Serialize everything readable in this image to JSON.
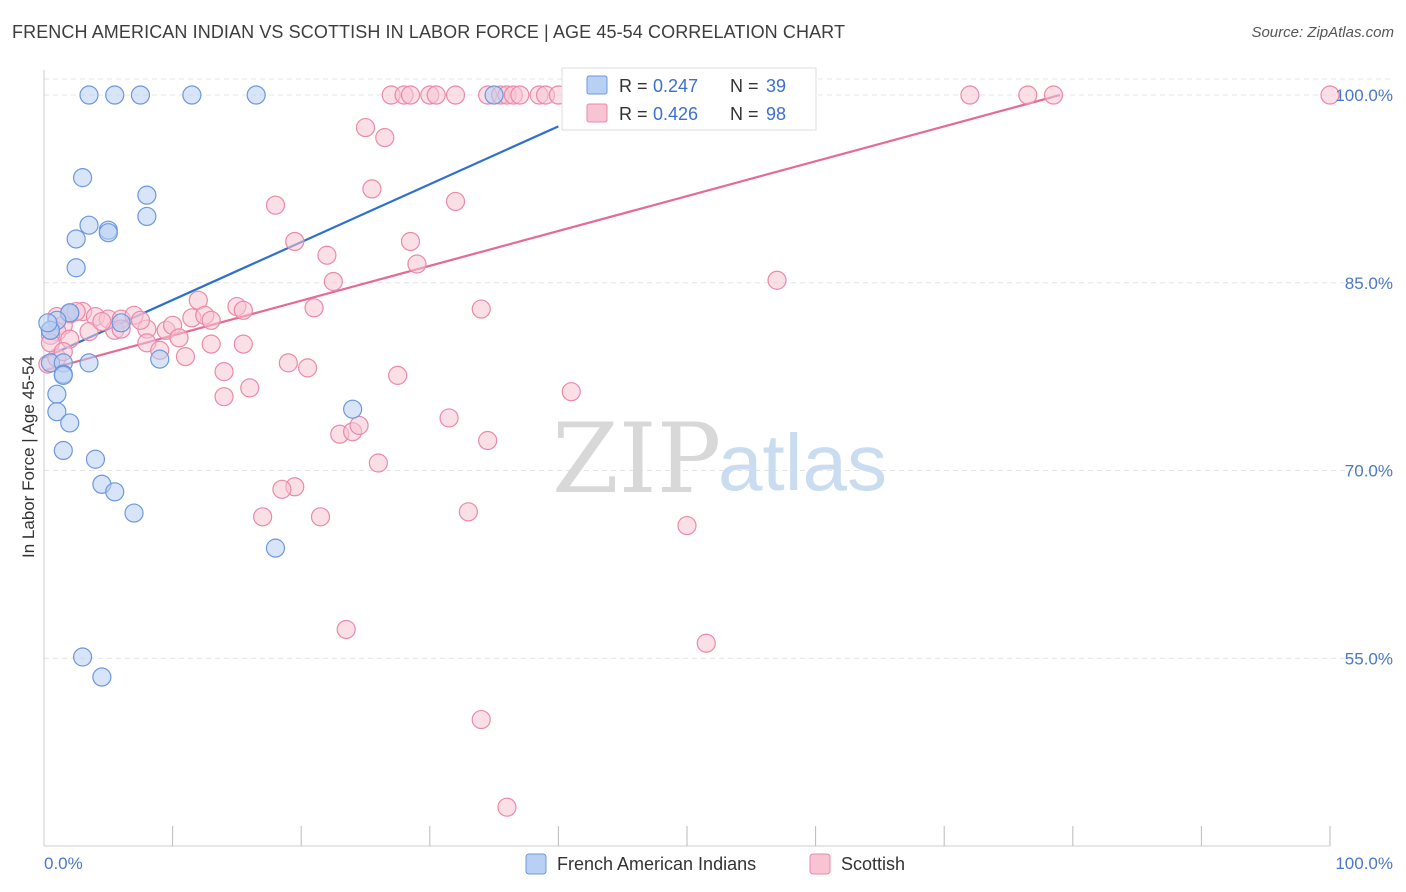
{
  "title": "FRENCH AMERICAN INDIAN VS SCOTTISH IN LABOR FORCE | AGE 45-54 CORRELATION CHART",
  "source": "Source: ZipAtlas.com",
  "watermark": {
    "zip": "ZIP",
    "atlas": "atlas"
  },
  "colors": {
    "blue_fill": "#b8d0f4",
    "blue_stroke": "#6b98de",
    "blue_line": "#2f6fce",
    "pink_fill": "#f8c4d3",
    "pink_stroke": "#ea8aa8",
    "pink_line": "#e56a94",
    "grid": "#e4e4e4",
    "axis_text": "#4a78c6"
  },
  "chart_data": {
    "type": "scatter",
    "xlabel": "",
    "ylabel": "In Labor Force | Age 45-54",
    "xlim": [
      0,
      100
    ],
    "ylim": [
      40,
      102
    ],
    "x_tick_labels": [
      "0.0%",
      "100.0%"
    ],
    "y_ticks": [
      {
        "value": 100,
        "label": "100.0%"
      },
      {
        "value": 85,
        "label": "85.0%"
      },
      {
        "value": 70,
        "label": "70.0%"
      },
      {
        "value": 55,
        "label": "55.0%"
      }
    ],
    "legend": {
      "position": "top-center",
      "entries": [
        {
          "r_label": "R = ",
          "r_value": "0.247",
          "n_label": "N = ",
          "n_value": "39"
        },
        {
          "r_label": "R = ",
          "r_value": "0.426",
          "n_label": "N = ",
          "n_value": "98"
        }
      ]
    },
    "bottom_legend": [
      "French American Indians",
      "Scottish"
    ],
    "series": [
      {
        "name": "French American Indians",
        "color": "blue",
        "trend": {
          "x0": 0,
          "y0": 79.0,
          "x1": 40,
          "y1": 97.5
        },
        "points": [
          [
            3.5,
            100
          ],
          [
            5.5,
            100
          ],
          [
            7.5,
            100
          ],
          [
            11.5,
            100
          ],
          [
            16.5,
            100
          ],
          [
            35,
            100
          ],
          [
            3,
            93.4
          ],
          [
            8,
            92
          ],
          [
            8,
            90.3
          ],
          [
            3.5,
            89.6
          ],
          [
            5,
            89.2
          ],
          [
            5,
            89
          ],
          [
            2.5,
            88.5
          ],
          [
            2.5,
            86.2
          ],
          [
            2,
            82.6
          ],
          [
            2,
            82.6
          ],
          [
            1,
            82
          ],
          [
            0.5,
            81.2
          ],
          [
            0.5,
            81.2
          ],
          [
            6,
            81.8
          ],
          [
            9,
            78.9
          ],
          [
            0.5,
            78.6
          ],
          [
            1.5,
            78.6
          ],
          [
            3.5,
            78.6
          ],
          [
            1.5,
            77.7
          ],
          [
            1.5,
            77.6
          ],
          [
            1,
            76.1
          ],
          [
            1,
            74.7
          ],
          [
            2,
            73.8
          ],
          [
            1.5,
            71.6
          ],
          [
            4,
            70.9
          ],
          [
            4.5,
            68.9
          ],
          [
            5.5,
            68.3
          ],
          [
            7,
            66.6
          ],
          [
            24,
            74.9
          ],
          [
            18,
            63.8
          ],
          [
            3,
            55.1
          ],
          [
            4.5,
            53.5
          ],
          [
            0.3,
            81.8
          ]
        ]
      },
      {
        "name": "Scottish",
        "color": "pink",
        "trend": {
          "x0": 0,
          "y0": 78.0,
          "x1": 79,
          "y1": 100
        },
        "points": [
          [
            27,
            100
          ],
          [
            28,
            100
          ],
          [
            28.5,
            100
          ],
          [
            30,
            100
          ],
          [
            30.5,
            100
          ],
          [
            32,
            100
          ],
          [
            34.5,
            100
          ],
          [
            35.5,
            100
          ],
          [
            36,
            100
          ],
          [
            36.5,
            100
          ],
          [
            37,
            100
          ],
          [
            38.5,
            100
          ],
          [
            39,
            100
          ],
          [
            40,
            100
          ],
          [
            41,
            100
          ],
          [
            44.5,
            100
          ],
          [
            45,
            100
          ],
          [
            47,
            100
          ],
          [
            49,
            100
          ],
          [
            52,
            100
          ],
          [
            55,
            100
          ],
          [
            59,
            100
          ],
          [
            72,
            100
          ],
          [
            76.5,
            100
          ],
          [
            78.5,
            100
          ],
          [
            100,
            100
          ],
          [
            25,
            97.4
          ],
          [
            26.5,
            96.6
          ],
          [
            25.5,
            92.5
          ],
          [
            32,
            91.5
          ],
          [
            18,
            91.2
          ],
          [
            19.5,
            88.3
          ],
          [
            28.5,
            88.3
          ],
          [
            22,
            87.2
          ],
          [
            29,
            86.5
          ],
          [
            22.5,
            85.1
          ],
          [
            57,
            85.2
          ],
          [
            34,
            82.9
          ],
          [
            21,
            83
          ],
          [
            15,
            83.1
          ],
          [
            15.5,
            82.8
          ],
          [
            12,
            83.6
          ],
          [
            11.5,
            82.2
          ],
          [
            12.5,
            82.4
          ],
          [
            13,
            82
          ],
          [
            1,
            82.3
          ],
          [
            2,
            82.5
          ],
          [
            3,
            82.7
          ],
          [
            4,
            82.3
          ],
          [
            5,
            82.1
          ],
          [
            6,
            82.1
          ],
          [
            7,
            82.4
          ],
          [
            8,
            81.3
          ],
          [
            9.5,
            81.2
          ],
          [
            10,
            81.6
          ],
          [
            2.5,
            82.7
          ],
          [
            1.5,
            81.6
          ],
          [
            1,
            81.1
          ],
          [
            0.5,
            80.8
          ],
          [
            5.5,
            81.2
          ],
          [
            6,
            81.3
          ],
          [
            10.5,
            80.6
          ],
          [
            8,
            80.2
          ],
          [
            13,
            80.1
          ],
          [
            15.5,
            80.1
          ],
          [
            11,
            79.1
          ],
          [
            9,
            79.6
          ],
          [
            19,
            78.6
          ],
          [
            20.5,
            78.2
          ],
          [
            0.3,
            78.5
          ],
          [
            1,
            79
          ],
          [
            14,
            77.9
          ],
          [
            27.5,
            77.6
          ],
          [
            16,
            76.6
          ],
          [
            14,
            75.9
          ],
          [
            41,
            76.3
          ],
          [
            31.5,
            74.2
          ],
          [
            23,
            72.9
          ],
          [
            24,
            73.1
          ],
          [
            24.5,
            73.6
          ],
          [
            34.5,
            72.4
          ],
          [
            26,
            70.6
          ],
          [
            19.5,
            68.7
          ],
          [
            18.5,
            68.5
          ],
          [
            17,
            66.3
          ],
          [
            21.5,
            66.3
          ],
          [
            33,
            66.7
          ],
          [
            50,
            65.6
          ],
          [
            23.5,
            57.3
          ],
          [
            51.5,
            56.2
          ],
          [
            34,
            50.1
          ],
          [
            36,
            43.1
          ],
          [
            0.5,
            80.2
          ],
          [
            3.5,
            81.1
          ],
          [
            7.5,
            82
          ],
          [
            4.5,
            81.9
          ],
          [
            2,
            80.5
          ],
          [
            1.5,
            79.5
          ]
        ]
      }
    ]
  }
}
